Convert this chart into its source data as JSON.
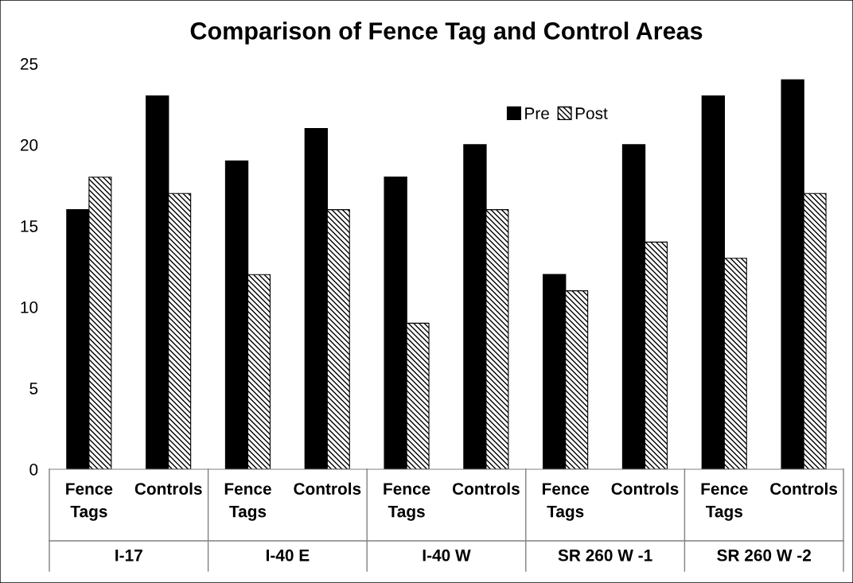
{
  "chart_data": {
    "type": "bar",
    "title": "Comparison of Fence Tag and Control Areas",
    "categories": [
      "Fence Tags",
      "Controls",
      "Fence Tags",
      "Controls",
      "Fence Tags",
      "Controls",
      "Fence Tags",
      "Controls",
      "Fence Tags",
      "Controls"
    ],
    "series": [
      {
        "name": "Pre",
        "color": "#000000",
        "values": [
          16,
          23,
          19,
          21,
          18,
          20,
          12,
          20,
          23,
          24
        ]
      },
      {
        "name": "Post",
        "color": "#000000",
        "values": [
          18,
          17,
          12,
          16,
          9,
          16,
          11,
          14,
          13,
          17
        ]
      }
    ],
    "annotations": [
      "I-17",
      "I-40 E",
      "I-40 W",
      "SR 260 W -1",
      "SR 260 W -2"
    ],
    "ylim": [
      0,
      25
    ],
    "yticks": [
      0,
      5,
      10,
      15,
      20,
      25
    ],
    "grid": false,
    "legend": "top"
  }
}
